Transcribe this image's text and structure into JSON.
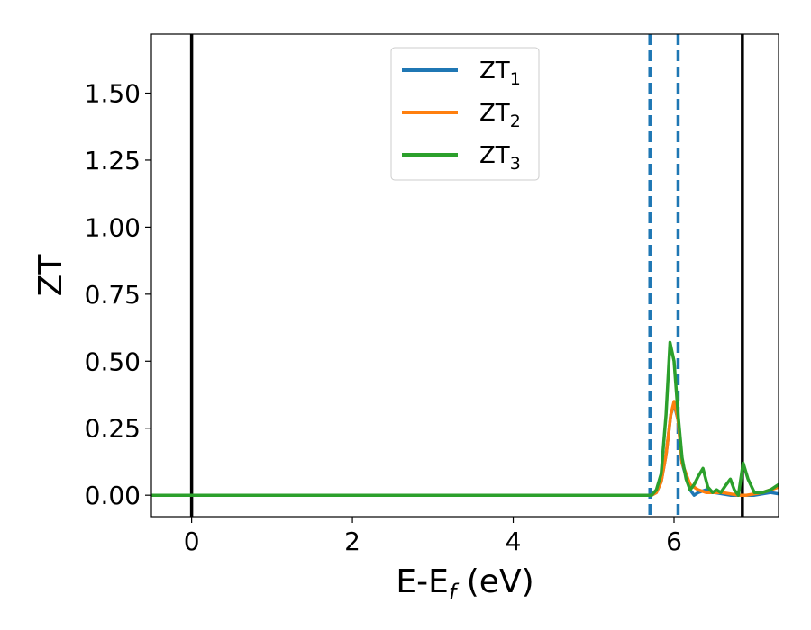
{
  "chart_data": {
    "type": "line",
    "xlabel": "E-E",
    "xlabel_sub": "f",
    "xlabel_unit": " (eV)",
    "ylabel": "ZT",
    "xlim": [
      -0.5,
      7.3
    ],
    "ylim": [
      -0.08,
      1.72
    ],
    "x_ticks": [
      0,
      2,
      4,
      6
    ],
    "x_tick_labels": [
      "0",
      "2",
      "4",
      "6"
    ],
    "y_ticks": [
      0.0,
      0.25,
      0.5,
      0.75,
      1.0,
      1.25,
      1.5
    ],
    "y_tick_labels": [
      "0.00",
      "0.25",
      "0.50",
      "0.75",
      "1.00",
      "1.25",
      "1.50"
    ],
    "grid": false,
    "legend_position": "top-center",
    "vertical_lines": [
      {
        "x": 0.0,
        "style": "solid",
        "color": "#000000"
      },
      {
        "x": 5.7,
        "style": "dashed",
        "color": "#1f77b4"
      },
      {
        "x": 6.05,
        "style": "dashed",
        "color": "#1f77b4"
      },
      {
        "x": 6.85,
        "style": "solid",
        "color": "#000000"
      }
    ],
    "series": [
      {
        "name": "ZT",
        "sub": "1",
        "color": "#1f77b4",
        "x": [
          -0.5,
          5.72,
          5.78,
          5.84,
          5.9,
          5.96,
          6.0,
          6.05,
          6.1,
          6.2,
          6.25,
          6.3,
          6.4,
          6.5,
          6.6,
          6.7,
          6.8,
          6.9,
          7.0,
          7.1,
          7.2,
          7.3
        ],
        "y": [
          0.0,
          0.0,
          0.01,
          0.05,
          0.15,
          0.3,
          0.34,
          0.28,
          0.12,
          0.02,
          0.0,
          0.01,
          0.02,
          0.01,
          0.005,
          0.0,
          0.0,
          0.0,
          0.0,
          0.005,
          0.01,
          0.005
        ]
      },
      {
        "name": "ZT",
        "sub": "2",
        "color": "#ff7f0e",
        "x": [
          -0.5,
          5.72,
          5.78,
          5.84,
          5.9,
          5.96,
          6.0,
          6.05,
          6.1,
          6.2,
          6.3,
          6.4,
          6.5,
          6.6,
          6.7,
          6.8,
          6.9,
          7.0,
          7.1,
          7.2,
          7.3
        ],
        "y": [
          0.0,
          0.0,
          0.01,
          0.05,
          0.15,
          0.3,
          0.35,
          0.28,
          0.12,
          0.04,
          0.02,
          0.01,
          0.01,
          0.01,
          0.005,
          0.0,
          0.0,
          0.005,
          0.01,
          0.02,
          0.03
        ]
      },
      {
        "name": "ZT",
        "sub": "3",
        "color": "#2ca02c",
        "x": [
          -0.5,
          5.72,
          5.78,
          5.84,
          5.9,
          5.95,
          6.0,
          6.05,
          6.1,
          6.15,
          6.2,
          6.25,
          6.3,
          6.36,
          6.42,
          6.48,
          6.53,
          6.58,
          6.65,
          6.7,
          6.75,
          6.8,
          6.86,
          6.92,
          7.0,
          7.1,
          7.2,
          7.3
        ],
        "y": [
          0.0,
          0.0,
          0.02,
          0.08,
          0.3,
          0.57,
          0.5,
          0.3,
          0.14,
          0.06,
          0.02,
          0.04,
          0.07,
          0.1,
          0.03,
          0.01,
          0.02,
          0.01,
          0.04,
          0.06,
          0.02,
          0.0,
          0.12,
          0.06,
          0.01,
          0.01,
          0.02,
          0.04
        ]
      }
    ]
  }
}
